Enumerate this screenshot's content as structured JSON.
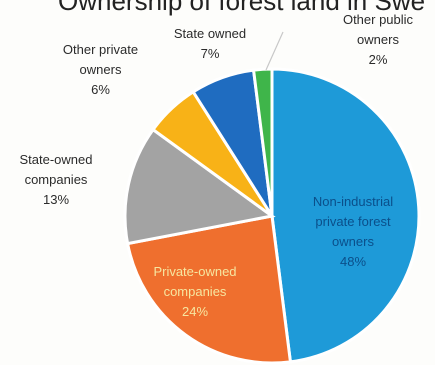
{
  "chart_data": {
    "type": "pie",
    "title": "Ownership of forest land in Swe",
    "slices": [
      {
        "name": "Non-industrial private forest owners",
        "line1": "Non-industrial",
        "line2": "private forest",
        "line3": "owners",
        "value": 48,
        "pct_label": "48%",
        "color": "#1e9ad8",
        "text_color": "#0b4f8a"
      },
      {
        "name": "Private-owned companies",
        "line1": "Private-owned",
        "line2": "companies",
        "value": 24,
        "pct_label": "24%",
        "color": "#ef6f2e",
        "text_color": "#f6e6a0"
      },
      {
        "name": "State-owned companies",
        "line1": "State-owned",
        "line2": "companies",
        "value": 13,
        "pct_label": "13%",
        "color": "#a3a3a3",
        "text_color": "#2b2b2b"
      },
      {
        "name": "Other private owners",
        "line1": "Other private",
        "line2": "owners",
        "value": 6,
        "pct_label": "6%",
        "color": "#f8b217",
        "text_color": "#2b2b2b"
      },
      {
        "name": "State owned",
        "line1": "State owned",
        "value": 7,
        "pct_label": "7%",
        "color": "#1f6cc0",
        "text_color": "#2b2b2b"
      },
      {
        "name": "Other public owners",
        "line1": "Other public",
        "line2": "owners",
        "value": 2,
        "pct_label": "2%",
        "color": "#3fb54a",
        "text_color": "#2b2b2b"
      }
    ]
  }
}
